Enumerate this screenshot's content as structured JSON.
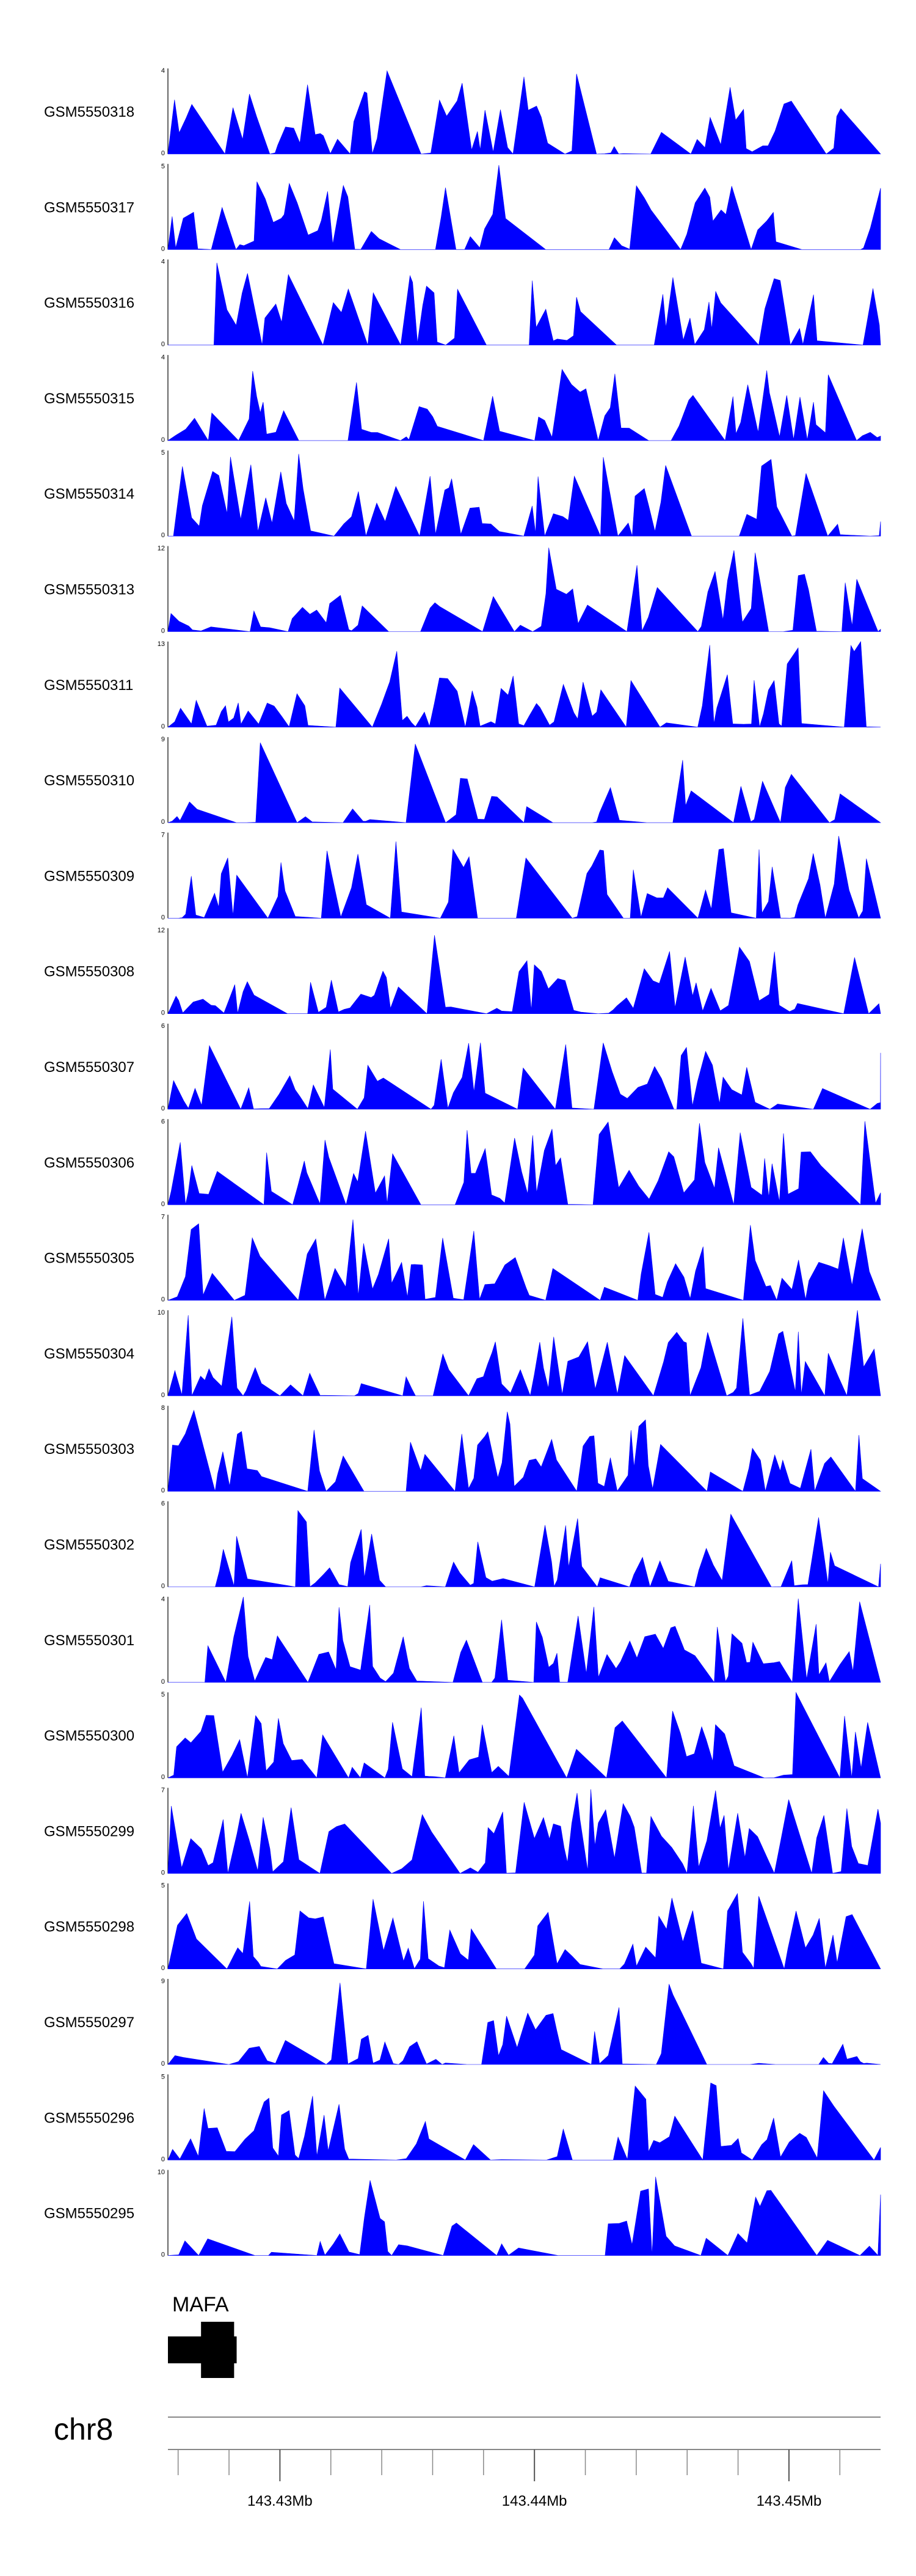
{
  "chart_data": {
    "type": "area",
    "chromosome": "chr8",
    "x_range": [
      143.4256,
      143.4536
    ],
    "x_unit": "Mb",
    "x_ticks": [
      {
        "value": 143.43,
        "label": "143.43Mb"
      },
      {
        "value": 143.44,
        "label": "143.44Mb"
      },
      {
        "value": 143.45,
        "label": "143.45Mb"
      }
    ],
    "minor_tick_step": 0.002,
    "track_color": "#0000ff",
    "gene": {
      "name": "MAFA",
      "exons": [
        [
          143.4256,
          143.4283
        ]
      ],
      "cds": [
        [
          143.4269,
          143.4282
        ]
      ]
    },
    "tracks": [
      {
        "name": "GSM5550318",
        "ymax": 4,
        "seed": 318
      },
      {
        "name": "GSM5550317",
        "ymax": 5,
        "seed": 317
      },
      {
        "name": "GSM5550316",
        "ymax": 4,
        "seed": 316
      },
      {
        "name": "GSM5550315",
        "ymax": 4,
        "seed": 315
      },
      {
        "name": "GSM5550314",
        "ymax": 5,
        "seed": 314
      },
      {
        "name": "GSM5550313",
        "ymax": 12,
        "seed": 313
      },
      {
        "name": "GSM5550311",
        "ymax": 13,
        "seed": 311
      },
      {
        "name": "GSM5550310",
        "ymax": 9,
        "seed": 310
      },
      {
        "name": "GSM5550309",
        "ymax": 7,
        "seed": 309
      },
      {
        "name": "GSM5550308",
        "ymax": 12,
        "seed": 308
      },
      {
        "name": "GSM5550307",
        "ymax": 6,
        "seed": 307
      },
      {
        "name": "GSM5550306",
        "ymax": 6,
        "seed": 306
      },
      {
        "name": "GSM5550305",
        "ymax": 7,
        "seed": 305
      },
      {
        "name": "GSM5550304",
        "ymax": 10,
        "seed": 304
      },
      {
        "name": "GSM5550303",
        "ymax": 8,
        "seed": 303
      },
      {
        "name": "GSM5550302",
        "ymax": 6,
        "seed": 302
      },
      {
        "name": "GSM5550301",
        "ymax": 4,
        "seed": 301
      },
      {
        "name": "GSM5550300",
        "ymax": 5,
        "seed": 300
      },
      {
        "name": "GSM5550299",
        "ymax": 7,
        "seed": 299
      },
      {
        "name": "GSM5550298",
        "ymax": 5,
        "seed": 298
      },
      {
        "name": "GSM5550297",
        "ymax": 9,
        "seed": 297
      },
      {
        "name": "GSM5550296",
        "ymax": 5,
        "seed": 296
      },
      {
        "name": "GSM5550295",
        "ymax": 10,
        "seed": 295
      }
    ]
  }
}
